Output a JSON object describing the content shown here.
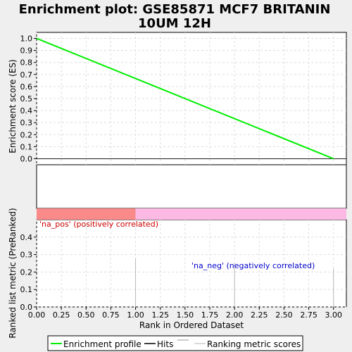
{
  "title": "Enrichment plot: GSE85871 MCF7 BRITANIN\n10UM 12H",
  "colors": {
    "background": "#efefef",
    "panel": "#ffffff",
    "grid": "#dddddd",
    "es_line": "#00ee00",
    "pos_bar": "#fa8a8a",
    "neg_bar": "#fbb9e4",
    "pos_label": "#cc0000",
    "neg_label": "#0000cc",
    "metric_bar": "#b8b8b8"
  },
  "chart_data": [
    {
      "type": "line",
      "ylabel": "Enrichment score (ES)",
      "xlim": [
        0,
        3.13
      ],
      "ylim": [
        -0.05,
        1.05
      ],
      "yticks": [
        "0.0",
        "0.1",
        "0.2",
        "0.3",
        "0.4",
        "0.5",
        "0.6",
        "0.7",
        "0.8",
        "0.9",
        "1.0"
      ],
      "grid": true,
      "series": [
        {
          "x": [
            0,
            3.0
          ],
          "y": [
            1.0,
            0.0
          ]
        }
      ]
    },
    {
      "type": "bar",
      "ylabel": "Ranked list metric (PreRanked)",
      "xlabel": "Rank in Ordered Dataset",
      "xlim": [
        0,
        3.13
      ],
      "ylim": [
        0,
        0.5
      ],
      "yticks": [
        "0.0",
        "0.1",
        "0.2",
        "0.3",
        "0.4"
      ],
      "xticks": [
        "0.00",
        "0.25",
        "0.50",
        "0.75",
        "1.00",
        "1.25",
        "1.50",
        "1.75",
        "2.00",
        "2.25",
        "2.50",
        "2.75",
        "3.00"
      ],
      "grid": true,
      "x": [
        1.0,
        2.0,
        3.0
      ],
      "values": [
        0.28,
        0.25,
        0.22
      ],
      "annotations": [
        {
          "text": "'na_pos' (positively correlated)",
          "role": "pos"
        },
        {
          "text": "'na_neg' (negatively correlated)",
          "role": "neg"
        }
      ],
      "phenotype_split_x": 1.0
    }
  ],
  "legend": {
    "items": [
      "Enrichment profile",
      "Hits",
      "Ranking metric scores"
    ],
    "placement": "bottom"
  }
}
